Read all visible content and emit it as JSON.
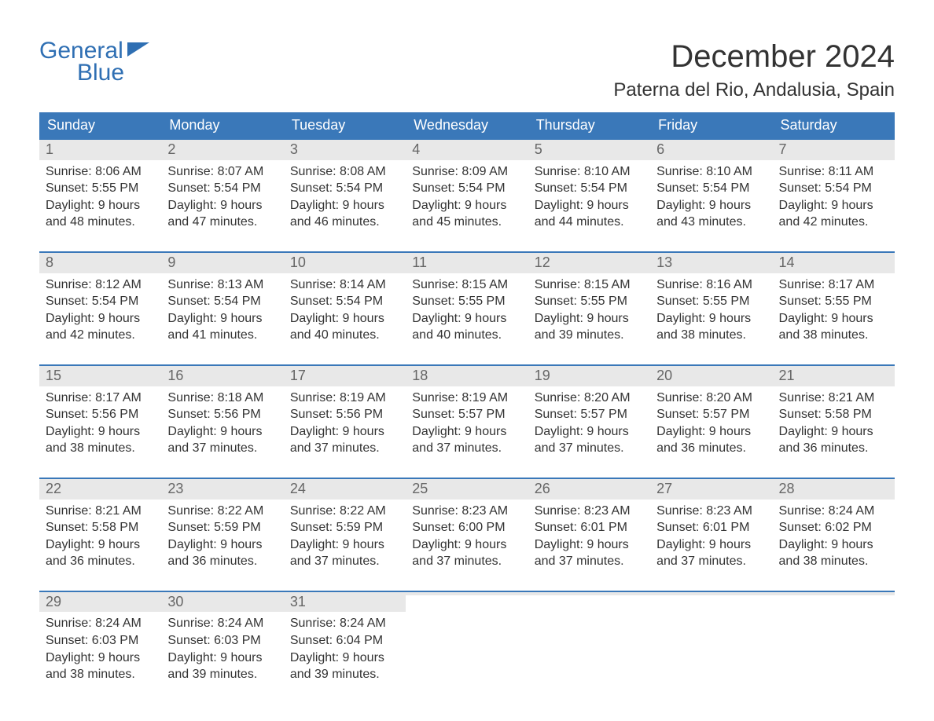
{
  "logo": {
    "text1": "General",
    "text2": "Blue"
  },
  "title": "December 2024",
  "location": "Paterna del Rio, Andalusia, Spain",
  "colors": {
    "header_bg": "#3a78b9",
    "header_text": "#ffffff",
    "daynum_bg": "#e8e8e8",
    "daynum_text": "#666666",
    "body_text": "#333333",
    "rule": "#3a78b9",
    "logo": "#2f6fb3",
    "page_bg": "#ffffff"
  },
  "weekdays": [
    "Sunday",
    "Monday",
    "Tuesday",
    "Wednesday",
    "Thursday",
    "Friday",
    "Saturday"
  ],
  "weeks": [
    [
      {
        "n": "1",
        "sr": "Sunrise: 8:06 AM",
        "ss": "Sunset: 5:55 PM",
        "d1": "Daylight: 9 hours",
        "d2": "and 48 minutes."
      },
      {
        "n": "2",
        "sr": "Sunrise: 8:07 AM",
        "ss": "Sunset: 5:54 PM",
        "d1": "Daylight: 9 hours",
        "d2": "and 47 minutes."
      },
      {
        "n": "3",
        "sr": "Sunrise: 8:08 AM",
        "ss": "Sunset: 5:54 PM",
        "d1": "Daylight: 9 hours",
        "d2": "and 46 minutes."
      },
      {
        "n": "4",
        "sr": "Sunrise: 8:09 AM",
        "ss": "Sunset: 5:54 PM",
        "d1": "Daylight: 9 hours",
        "d2": "and 45 minutes."
      },
      {
        "n": "5",
        "sr": "Sunrise: 8:10 AM",
        "ss": "Sunset: 5:54 PM",
        "d1": "Daylight: 9 hours",
        "d2": "and 44 minutes."
      },
      {
        "n": "6",
        "sr": "Sunrise: 8:10 AM",
        "ss": "Sunset: 5:54 PM",
        "d1": "Daylight: 9 hours",
        "d2": "and 43 minutes."
      },
      {
        "n": "7",
        "sr": "Sunrise: 8:11 AM",
        "ss": "Sunset: 5:54 PM",
        "d1": "Daylight: 9 hours",
        "d2": "and 42 minutes."
      }
    ],
    [
      {
        "n": "8",
        "sr": "Sunrise: 8:12 AM",
        "ss": "Sunset: 5:54 PM",
        "d1": "Daylight: 9 hours",
        "d2": "and 42 minutes."
      },
      {
        "n": "9",
        "sr": "Sunrise: 8:13 AM",
        "ss": "Sunset: 5:54 PM",
        "d1": "Daylight: 9 hours",
        "d2": "and 41 minutes."
      },
      {
        "n": "10",
        "sr": "Sunrise: 8:14 AM",
        "ss": "Sunset: 5:54 PM",
        "d1": "Daylight: 9 hours",
        "d2": "and 40 minutes."
      },
      {
        "n": "11",
        "sr": "Sunrise: 8:15 AM",
        "ss": "Sunset: 5:55 PM",
        "d1": "Daylight: 9 hours",
        "d2": "and 40 minutes."
      },
      {
        "n": "12",
        "sr": "Sunrise: 8:15 AM",
        "ss": "Sunset: 5:55 PM",
        "d1": "Daylight: 9 hours",
        "d2": "and 39 minutes."
      },
      {
        "n": "13",
        "sr": "Sunrise: 8:16 AM",
        "ss": "Sunset: 5:55 PM",
        "d1": "Daylight: 9 hours",
        "d2": "and 38 minutes."
      },
      {
        "n": "14",
        "sr": "Sunrise: 8:17 AM",
        "ss": "Sunset: 5:55 PM",
        "d1": "Daylight: 9 hours",
        "d2": "and 38 minutes."
      }
    ],
    [
      {
        "n": "15",
        "sr": "Sunrise: 8:17 AM",
        "ss": "Sunset: 5:56 PM",
        "d1": "Daylight: 9 hours",
        "d2": "and 38 minutes."
      },
      {
        "n": "16",
        "sr": "Sunrise: 8:18 AM",
        "ss": "Sunset: 5:56 PM",
        "d1": "Daylight: 9 hours",
        "d2": "and 37 minutes."
      },
      {
        "n": "17",
        "sr": "Sunrise: 8:19 AM",
        "ss": "Sunset: 5:56 PM",
        "d1": "Daylight: 9 hours",
        "d2": "and 37 minutes."
      },
      {
        "n": "18",
        "sr": "Sunrise: 8:19 AM",
        "ss": "Sunset: 5:57 PM",
        "d1": "Daylight: 9 hours",
        "d2": "and 37 minutes."
      },
      {
        "n": "19",
        "sr": "Sunrise: 8:20 AM",
        "ss": "Sunset: 5:57 PM",
        "d1": "Daylight: 9 hours",
        "d2": "and 37 minutes."
      },
      {
        "n": "20",
        "sr": "Sunrise: 8:20 AM",
        "ss": "Sunset: 5:57 PM",
        "d1": "Daylight: 9 hours",
        "d2": "and 36 minutes."
      },
      {
        "n": "21",
        "sr": "Sunrise: 8:21 AM",
        "ss": "Sunset: 5:58 PM",
        "d1": "Daylight: 9 hours",
        "d2": "and 36 minutes."
      }
    ],
    [
      {
        "n": "22",
        "sr": "Sunrise: 8:21 AM",
        "ss": "Sunset: 5:58 PM",
        "d1": "Daylight: 9 hours",
        "d2": "and 36 minutes."
      },
      {
        "n": "23",
        "sr": "Sunrise: 8:22 AM",
        "ss": "Sunset: 5:59 PM",
        "d1": "Daylight: 9 hours",
        "d2": "and 36 minutes."
      },
      {
        "n": "24",
        "sr": "Sunrise: 8:22 AM",
        "ss": "Sunset: 5:59 PM",
        "d1": "Daylight: 9 hours",
        "d2": "and 37 minutes."
      },
      {
        "n": "25",
        "sr": "Sunrise: 8:23 AM",
        "ss": "Sunset: 6:00 PM",
        "d1": "Daylight: 9 hours",
        "d2": "and 37 minutes."
      },
      {
        "n": "26",
        "sr": "Sunrise: 8:23 AM",
        "ss": "Sunset: 6:01 PM",
        "d1": "Daylight: 9 hours",
        "d2": "and 37 minutes."
      },
      {
        "n": "27",
        "sr": "Sunrise: 8:23 AM",
        "ss": "Sunset: 6:01 PM",
        "d1": "Daylight: 9 hours",
        "d2": "and 37 minutes."
      },
      {
        "n": "28",
        "sr": "Sunrise: 8:24 AM",
        "ss": "Sunset: 6:02 PM",
        "d1": "Daylight: 9 hours",
        "d2": "and 38 minutes."
      }
    ],
    [
      {
        "n": "29",
        "sr": "Sunrise: 8:24 AM",
        "ss": "Sunset: 6:03 PM",
        "d1": "Daylight: 9 hours",
        "d2": "and 38 minutes."
      },
      {
        "n": "30",
        "sr": "Sunrise: 8:24 AM",
        "ss": "Sunset: 6:03 PM",
        "d1": "Daylight: 9 hours",
        "d2": "and 39 minutes."
      },
      {
        "n": "31",
        "sr": "Sunrise: 8:24 AM",
        "ss": "Sunset: 6:04 PM",
        "d1": "Daylight: 9 hours",
        "d2": "and 39 minutes."
      },
      {
        "empty": true
      },
      {
        "empty": true
      },
      {
        "empty": true
      },
      {
        "empty": true
      }
    ]
  ]
}
